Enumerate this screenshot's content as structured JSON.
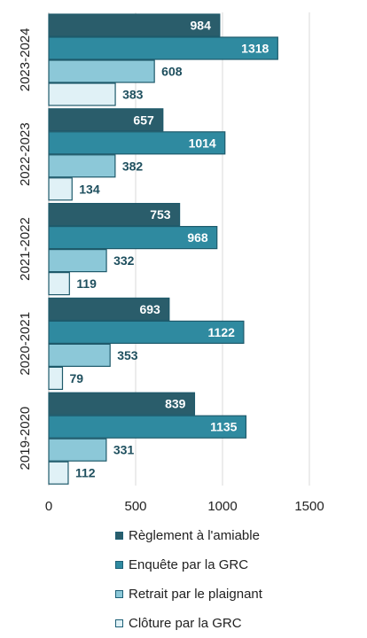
{
  "chart_data": {
    "type": "bar",
    "orientation": "horizontal",
    "categories": [
      "2023-2024",
      "2022-2023",
      "2021-2022",
      "2020-2021",
      "2019-2020"
    ],
    "series": [
      {
        "name": "Règlement à l'amiable",
        "values": [
          984,
          657,
          753,
          693,
          839
        ],
        "color": "#2a5d6b",
        "label_color": "#ffffff"
      },
      {
        "name": "Enquête par la GRC",
        "values": [
          1318,
          1014,
          968,
          1122,
          1135
        ],
        "color": "#2f8aa0",
        "label_color": "#ffffff"
      },
      {
        "name": "Retrait par le plaignant",
        "values": [
          608,
          382,
          332,
          353,
          331
        ],
        "color": "#8cc8d8",
        "label_color": "#1e4f5e"
      },
      {
        "name": "Clôture par la GRC",
        "values": [
          383,
          134,
          119,
          79,
          112
        ],
        "color": "#e0f1f6",
        "label_color": "#1e4f5e"
      }
    ],
    "xlim": [
      0,
      1500
    ],
    "xticks": [
      "0",
      "500",
      "1000",
      "1500"
    ],
    "grid": "vertical",
    "legend_position": "bottom"
  }
}
